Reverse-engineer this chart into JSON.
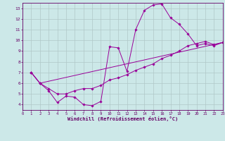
{
  "xlabel": "Windchill (Refroidissement éolien,°C)",
  "bg_color": "#cce8e8",
  "grid_color": "#b0c8c8",
  "line_color": "#990099",
  "xlim": [
    0,
    23
  ],
  "ylim": [
    3.5,
    13.5
  ],
  "yticks": [
    4,
    5,
    6,
    7,
    8,
    9,
    10,
    11,
    12,
    13
  ],
  "xticks": [
    0,
    1,
    2,
    3,
    4,
    5,
    6,
    7,
    8,
    9,
    10,
    11,
    12,
    13,
    14,
    15,
    16,
    17,
    18,
    19,
    20,
    21,
    22,
    23
  ],
  "series1_x": [
    1,
    2,
    3,
    4,
    5,
    6,
    7,
    8,
    9,
    10,
    11,
    12,
    13,
    14,
    15,
    16,
    17,
    18,
    19,
    20,
    21,
    22,
    23
  ],
  "series1_y": [
    7.0,
    6.0,
    5.3,
    4.2,
    4.8,
    4.7,
    4.0,
    3.9,
    4.3,
    9.4,
    9.3,
    7.1,
    11.0,
    12.8,
    13.3,
    13.4,
    12.1,
    11.5,
    10.6,
    9.5,
    9.7,
    9.5,
    9.8
  ],
  "series2_x": [
    1,
    2,
    3,
    4,
    5,
    6,
    7,
    8,
    9,
    10,
    11,
    12,
    13,
    14,
    15,
    16,
    17,
    18,
    19,
    20,
    21,
    22,
    23
  ],
  "series2_y": [
    7.0,
    6.0,
    5.5,
    5.0,
    5.0,
    5.3,
    5.5,
    5.5,
    5.8,
    6.3,
    6.5,
    6.8,
    7.2,
    7.5,
    7.8,
    8.3,
    8.6,
    9.0,
    9.5,
    9.7,
    9.9,
    9.6,
    9.8
  ],
  "series3_x": [
    1,
    2,
    23
  ],
  "series3_y": [
    7.0,
    6.0,
    9.8
  ]
}
